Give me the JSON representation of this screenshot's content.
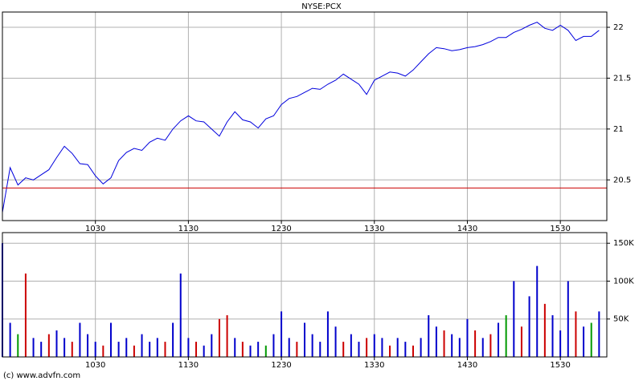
{
  "chart_data": [
    {
      "type": "line",
      "title": "NYSE:PCX",
      "x": [
        570,
        575,
        580,
        585,
        590,
        595,
        600,
        605,
        610,
        615,
        620,
        625,
        630,
        635,
        640,
        645,
        650,
        655,
        660,
        665,
        670,
        675,
        680,
        685,
        690,
        695,
        700,
        705,
        710,
        715,
        720,
        725,
        730,
        735,
        740,
        745,
        750,
        755,
        760,
        765,
        770,
        775,
        780,
        785,
        790,
        795,
        800,
        805,
        810,
        815,
        820,
        825,
        830,
        835,
        840,
        845,
        850,
        855,
        860,
        865,
        870,
        875,
        880,
        885,
        890,
        895,
        900,
        905,
        910,
        915,
        920,
        925,
        930,
        935,
        940,
        945,
        950,
        955
      ],
      "series": [
        {
          "color": "#0000dd",
          "values": [
            20.18,
            20.62,
            20.45,
            20.52,
            20.5,
            20.55,
            20.6,
            20.72,
            20.83,
            20.76,
            20.66,
            20.65,
            20.54,
            20.46,
            20.52,
            20.69,
            20.77,
            20.81,
            20.79,
            20.87,
            20.91,
            20.89,
            21.0,
            21.08,
            21.13,
            21.08,
            21.07,
            21.0,
            20.93,
            21.07,
            21.17,
            21.09,
            21.07,
            21.01,
            21.1,
            21.13,
            21.24,
            21.3,
            21.32,
            21.36,
            21.4,
            21.39,
            21.44,
            21.48,
            21.54,
            21.49,
            21.44,
            21.34,
            21.48,
            21.52,
            21.56,
            21.55,
            21.52,
            21.58,
            21.66,
            21.74,
            21.8,
            21.79,
            21.77,
            21.78,
            21.8,
            21.81,
            21.83,
            21.86,
            21.9,
            21.9,
            21.95,
            21.98,
            22.02,
            22.05,
            21.99,
            21.97,
            22.02,
            21.97,
            21.87,
            21.91,
            21.91,
            21.97
          ]
        }
      ],
      "reference_line": 20.42,
      "reference_color": "#cc0000",
      "xlim": [
        570,
        960
      ],
      "xticks": [
        {
          "value": 630,
          "label": "1030"
        },
        {
          "value": 690,
          "label": "1130"
        },
        {
          "value": 750,
          "label": "1230"
        },
        {
          "value": 810,
          "label": "1330"
        },
        {
          "value": 870,
          "label": "1430"
        },
        {
          "value": 930,
          "label": "1530"
        }
      ],
      "ylim": [
        20.1,
        22.15
      ],
      "yticks": [
        20.5,
        21,
        21.5,
        22
      ],
      "grid": true
    },
    {
      "type": "bar",
      "x": [
        570,
        575,
        580,
        585,
        590,
        595,
        600,
        605,
        610,
        615,
        620,
        625,
        630,
        635,
        640,
        645,
        650,
        655,
        660,
        665,
        670,
        675,
        680,
        685,
        690,
        695,
        700,
        705,
        710,
        715,
        720,
        725,
        730,
        735,
        740,
        745,
        750,
        755,
        760,
        765,
        770,
        775,
        780,
        785,
        790,
        795,
        800,
        805,
        810,
        815,
        820,
        825,
        830,
        835,
        840,
        845,
        850,
        855,
        860,
        865,
        870,
        875,
        880,
        885,
        890,
        895,
        900,
        905,
        910,
        915,
        920,
        925,
        930,
        935,
        940,
        945,
        950,
        955
      ],
      "values": [
        150000,
        45000,
        30000,
        110000,
        25000,
        20000,
        30000,
        35000,
        25000,
        20000,
        45000,
        30000,
        20000,
        15000,
        45000,
        20000,
        25000,
        15000,
        30000,
        20000,
        25000,
        20000,
        45000,
        110000,
        25000,
        20000,
        15000,
        30000,
        50000,
        55000,
        25000,
        20000,
        15000,
        20000,
        15000,
        30000,
        60000,
        25000,
        20000,
        45000,
        30000,
        20000,
        60000,
        40000,
        20000,
        30000,
        20000,
        25000,
        30000,
        25000,
        15000,
        25000,
        20000,
        15000,
        25000,
        55000,
        40000,
        35000,
        30000,
        25000,
        50000,
        35000,
        25000,
        30000,
        45000,
        55000,
        100000,
        40000,
        80000,
        120000,
        70000,
        55000,
        35000,
        100000,
        60000,
        40000,
        45000,
        60000
      ],
      "colors": [
        "#0000cc",
        "#0000cc",
        "#009900",
        "#cc0000",
        "#0000cc",
        "#0000cc",
        "#cc0000",
        "#0000cc",
        "#0000cc",
        "#cc0000",
        "#0000cc",
        "#0000cc",
        "#0000cc",
        "#cc0000",
        "#0000cc",
        "#0000cc",
        "#0000cc",
        "#cc0000",
        "#0000cc",
        "#0000cc",
        "#0000cc",
        "#cc0000",
        "#0000cc",
        "#0000cc",
        "#0000cc",
        "#cc0000",
        "#0000cc",
        "#0000cc",
        "#cc0000",
        "#cc0000",
        "#0000cc",
        "#cc0000",
        "#0000cc",
        "#0000cc",
        "#009900",
        "#0000cc",
        "#0000cc",
        "#0000cc",
        "#cc0000",
        "#0000cc",
        "#0000cc",
        "#0000cc",
        "#0000cc",
        "#0000cc",
        "#cc0000",
        "#0000cc",
        "#0000cc",
        "#cc0000",
        "#0000cc",
        "#0000cc",
        "#cc0000",
        "#0000cc",
        "#0000cc",
        "#cc0000",
        "#0000cc",
        "#0000cc",
        "#0000cc",
        "#cc0000",
        "#0000cc",
        "#0000cc",
        "#0000cc",
        "#cc0000",
        "#0000cc",
        "#cc0000",
        "#0000cc",
        "#009900",
        "#0000cc",
        "#cc0000",
        "#0000cc",
        "#0000cc",
        "#cc0000",
        "#0000cc",
        "#0000cc",
        "#0000cc",
        "#cc0000",
        "#0000cc",
        "#009900",
        "#0000cc"
      ],
      "xlim": [
        570,
        960
      ],
      "xticks": [
        {
          "value": 630,
          "label": "1030"
        },
        {
          "value": 690,
          "label": "1130"
        },
        {
          "value": 750,
          "label": "1230"
        },
        {
          "value": 810,
          "label": "1330"
        },
        {
          "value": 870,
          "label": "1430"
        },
        {
          "value": 930,
          "label": "1530"
        }
      ],
      "ylim": [
        0,
        164000
      ],
      "yticks": [
        {
          "value": 50000,
          "label": "50K"
        },
        {
          "value": 100000,
          "label": "100K"
        },
        {
          "value": 150000,
          "label": "150K"
        }
      ],
      "grid": true
    }
  ],
  "credit": "(c) www.advfn.com"
}
